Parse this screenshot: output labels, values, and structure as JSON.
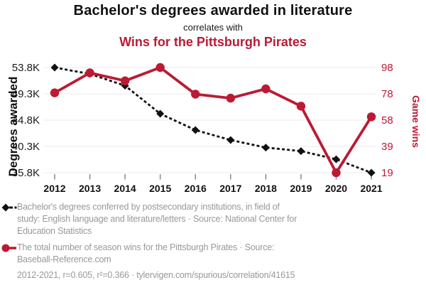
{
  "header": {
    "title_top": "Bachelor's degrees awarded in literature",
    "connector": "correlates with",
    "title_bottom": "Wins for the Pittsburgh Pirates"
  },
  "colors": {
    "accent_red": "#bb1a34",
    "series_black": "#111111",
    "legend_gray": "#999999",
    "grid_gray": "#ebebeb",
    "tick_gray": "#888888"
  },
  "chart_data": {
    "type": "line",
    "x": [
      2012,
      2013,
      2014,
      2015,
      2016,
      2017,
      2018,
      2019,
      2020,
      2021
    ],
    "series": [
      {
        "name": "Bachelor's degrees conferred by postsecondary institutions, in field of study: English language and literature/letters",
        "axis": "left",
        "style": "dashed",
        "marker": "diamond",
        "color": "#111111",
        "values": [
          53800,
          52700,
          50700,
          45900,
          43100,
          41400,
          40100,
          39500,
          38100,
          35800
        ]
      },
      {
        "name": "The total number of season wins for the Pittsburgh Pirates",
        "axis": "right",
        "style": "solid",
        "marker": "circle",
        "color": "#bb1a34",
        "values": [
          79,
          94,
          88,
          98,
          78,
          75,
          82,
          69,
          19,
          61
        ]
      }
    ],
    "left_axis": {
      "label": "Degrees awarded",
      "tick_labels": [
        "53.8K",
        "49.3K",
        "44.8K",
        "40.3K",
        "35.8K"
      ],
      "tick_values": [
        53800,
        49300,
        44800,
        40300,
        35800
      ],
      "range": [
        35800,
        53800
      ]
    },
    "right_axis": {
      "label": "Game wins",
      "tick_labels": [
        "98",
        "78",
        "58",
        "39",
        "19"
      ],
      "tick_values": [
        98,
        78,
        58,
        39,
        19
      ],
      "range": [
        19,
        98
      ]
    },
    "grid": true,
    "legend_position": "bottom"
  },
  "legend": {
    "series1_lines": [
      "Bachelor's degrees conferred by postsecondary institutions, in field of",
      "study: English language and literature/letters · Source: National Center for",
      "Education Statistics"
    ],
    "series2_lines": [
      "The total number of season wins for the Pittsburgh Pirates · Source:",
      "Baseball-Reference.com"
    ],
    "footer": "2012-2021, r=0.605, r²=0.366 · tylervigen.com/spurious/correlation/41615"
  }
}
